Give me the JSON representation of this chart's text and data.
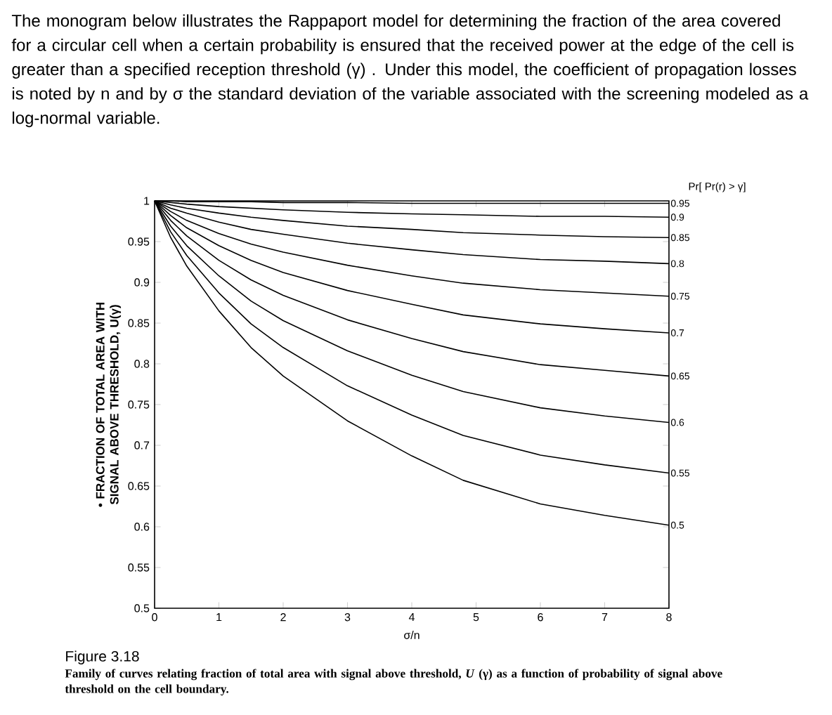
{
  "chart_data": {
    "type": "line",
    "title": "The monogram below illustrates the Rappaport model for determining the fraction of the area covered for a circular cell when a certain probability is ensured that the received power at the edge of the cell is greater than a specified reception threshold (γ) . Under this model, the coefficient of propagation losses is noted by n and by σ the standard deviation of the variable associated with the screening modeled as a log-normal variable.",
    "xlabel": "σ/n",
    "ylabel": "• FRACTION OF TOTAL AREA WITH SIGNAL ABOVE THRESHOLD, U(γ)",
    "legend_title": "Pr[ Pr(r) > γ]",
    "annotations": [
      "Figure 3.18",
      "**Family of curves relating fraction of total area with signal above threshold, *U* (γ) as a function of probability of signal above threshold on the cell boundary.**"
    ],
    "x": [
      0,
      0.25,
      0.5,
      1,
      1.5,
      2,
      3,
      4,
      4.8,
      6,
      7,
      8
    ],
    "series": [
      {
        "name": "0.95",
        "color": "#000000",
        "values": [
          1,
          1,
          0.999,
          0.999,
          0.999,
          0.998,
          0.998,
          0.997,
          0.997,
          0.997,
          0.997,
          0.997
        ]
      },
      {
        "name": "0.9",
        "color": "#000000",
        "values": [
          1,
          0.998,
          0.996,
          0.993,
          0.991,
          0.989,
          0.986,
          0.984,
          0.983,
          0.981,
          0.981,
          0.98
        ]
      },
      {
        "name": "0.85",
        "color": "#000000",
        "values": [
          1,
          0.995,
          0.991,
          0.985,
          0.98,
          0.976,
          0.969,
          0.965,
          0.961,
          0.958,
          0.956,
          0.955
        ]
      },
      {
        "name": "0.8",
        "color": "#000000",
        "values": [
          1,
          0.991,
          0.985,
          0.974,
          0.965,
          0.959,
          0.948,
          0.94,
          0.934,
          0.928,
          0.926,
          0.923
        ]
      },
      {
        "name": "0.75",
        "color": "#000000",
        "values": [
          1,
          0.987,
          0.976,
          0.96,
          0.947,
          0.937,
          0.921,
          0.908,
          0.899,
          0.891,
          0.887,
          0.883
        ]
      },
      {
        "name": "0.7",
        "color": "#000000",
        "values": [
          1,
          0.982,
          0.967,
          0.945,
          0.927,
          0.912,
          0.89,
          0.873,
          0.86,
          0.849,
          0.843,
          0.838
        ]
      },
      {
        "name": "0.65",
        "color": "#000000",
        "values": [
          1,
          0.976,
          0.957,
          0.927,
          0.903,
          0.884,
          0.854,
          0.831,
          0.815,
          0.799,
          0.792,
          0.785
        ]
      },
      {
        "name": "0.6",
        "color": "#000000",
        "values": [
          1,
          0.969,
          0.945,
          0.908,
          0.877,
          0.853,
          0.816,
          0.786,
          0.766,
          0.746,
          0.736,
          0.728
        ]
      },
      {
        "name": "0.55",
        "color": "#000000",
        "values": [
          1,
          0.962,
          0.933,
          0.887,
          0.849,
          0.82,
          0.773,
          0.737,
          0.712,
          0.688,
          0.676,
          0.666
        ]
      },
      {
        "name": "0.5",
        "color": "#000000",
        "values": [
          1,
          0.955,
          0.92,
          0.865,
          0.82,
          0.785,
          0.73,
          0.687,
          0.657,
          0.628,
          0.614,
          0.602
        ]
      }
    ],
    "xlim": [
      0,
      8
    ],
    "xticks": [
      0,
      1,
      2,
      3,
      4,
      5,
      6,
      7,
      8
    ],
    "ylim": [
      0.5,
      1
    ],
    "yticks": [
      0.5,
      0.55,
      0.6,
      0.65,
      0.7,
      0.75,
      0.8,
      0.85,
      0.9,
      0.95,
      1
    ],
    "grid": false,
    "marker": "none",
    "line_style": "solid"
  }
}
